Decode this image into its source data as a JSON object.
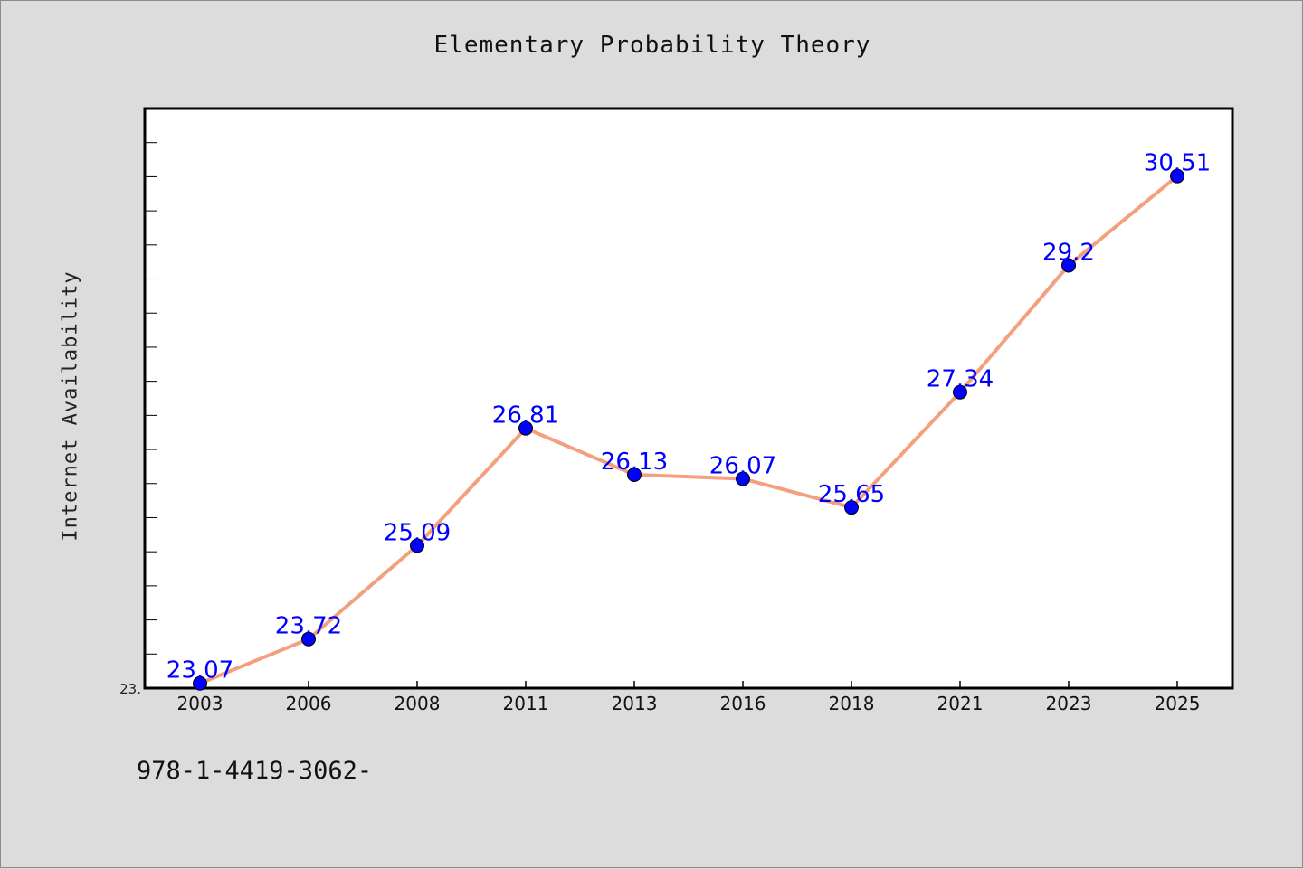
{
  "chart_data": {
    "type": "line",
    "title": "Elementary Probability Theory",
    "xlabel": "",
    "ylabel": "Internet Availability",
    "categories": [
      "2003",
      "2006",
      "2008",
      "2011",
      "2013",
      "2016",
      "2018",
      "2021",
      "2023",
      "2025"
    ],
    "series": [
      {
        "values": [
          23.07,
          23.72,
          25.09,
          26.81,
          26.13,
          26.07,
          25.65,
          27.34,
          29.2,
          30.51
        ],
        "data_labels": [
          "23.07",
          "23.72",
          "25.09",
          "26.81",
          "26.13",
          "26.07",
          "25.65",
          "27.34",
          "29.2",
          "30.51"
        ]
      }
    ],
    "ylim": [
      23.0,
      31.5
    ],
    "ytick_labels": [
      "23."
    ],
    "grid": false,
    "legend": "none"
  },
  "footer": {
    "text": "978-1-4419-3062-"
  },
  "colors": {
    "background": "#dcdcdc",
    "plot_area": "#ffffff",
    "line": "#f4a07e",
    "marker": "#0000ff",
    "data_label": "#0000ff"
  }
}
